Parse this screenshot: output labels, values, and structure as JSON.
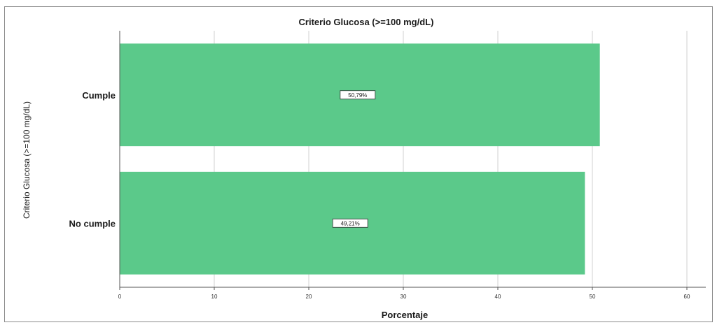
{
  "chart_data": {
    "type": "bar",
    "orientation": "horizontal",
    "title": "Criterio Glucosa (>=100 mg/dL)",
    "xlabel": "Porcentaje",
    "ylabel": "Criterio Glucosa (>=100 mg/dL)",
    "categories": [
      "Cumple",
      "No cumple"
    ],
    "values": [
      50.79,
      49.21
    ],
    "data_labels": [
      "50,79%",
      "49,21%"
    ],
    "xlim": [
      0,
      62
    ],
    "xticks": [
      0,
      10,
      20,
      30,
      40,
      50,
      60
    ],
    "grid": true,
    "legend": "none",
    "colors": {
      "bar": "#5bc98a",
      "grid": "#d0d0d0",
      "axis": "#555555"
    }
  }
}
